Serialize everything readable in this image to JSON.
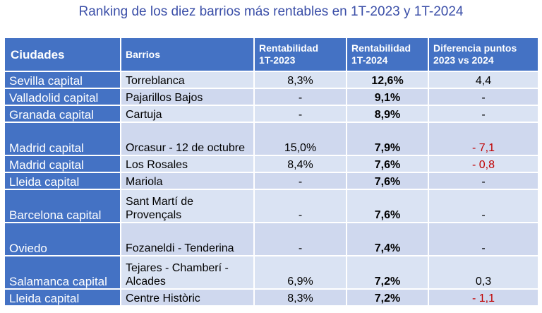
{
  "title": "Ranking de los diez barrios más rentables en 1T-2023 y 1T-2024",
  "header": {
    "ciudades": "Ciudades",
    "barrios": "Barrios",
    "rent2023_line1": "Rentabilidad",
    "rent2023_line2": "1T-2023",
    "rent2024_line1": "Rentabilidad",
    "rent2024_line2": "1T-2024",
    "diff_line1": "Diferencia puntos",
    "diff_line2": "2023 vs 2024"
  },
  "rows": [
    {
      "city": "Sevilla capital",
      "barrio": "Torreblanca",
      "r2023": "8,3%",
      "r2024": "12,6%",
      "diff": "4,4"
    },
    {
      "city": "Valladolid capital",
      "barrio": "Pajarillos Bajos",
      "r2023": "-",
      "r2024": "9,1%",
      "diff": "-"
    },
    {
      "city": "Granada capital",
      "barrio": "Cartuja",
      "r2023": "-",
      "r2024": "8,9%",
      "diff": "-"
    },
    {
      "city": "Madrid capital",
      "barrio": "Orcasur - 12 de octubre",
      "r2023": "15,0%",
      "r2024": "7,9%",
      "diff": "- 7,1"
    },
    {
      "city": "Madrid capital",
      "barrio": "Los Rosales",
      "r2023": "8,4%",
      "r2024": "7,6%",
      "diff": "- 0,8"
    },
    {
      "city": "Lleida capital",
      "barrio": "Mariola",
      "r2023": "-",
      "r2024": "7,6%",
      "diff": "-"
    },
    {
      "city": "Barcelona capital",
      "barrio": "Sant Martí de Provençals",
      "r2023": "-",
      "r2024": "7,6%",
      "diff": "-"
    },
    {
      "city": "Oviedo",
      "barrio": "Fozaneldi - Tenderina",
      "r2023": "-",
      "r2024": "7,4%",
      "diff": "-"
    },
    {
      "city": "Salamanca capital",
      "barrio": "Tejares - Chamberí - Alcades",
      "r2023": "6,9%",
      "r2024": "7,2%",
      "diff": "0,3"
    },
    {
      "city": "Lleida capital",
      "barrio": "Centre Històric",
      "r2023": "8,3%",
      "r2024": "7,2%",
      "diff": "- 1,1"
    }
  ]
}
